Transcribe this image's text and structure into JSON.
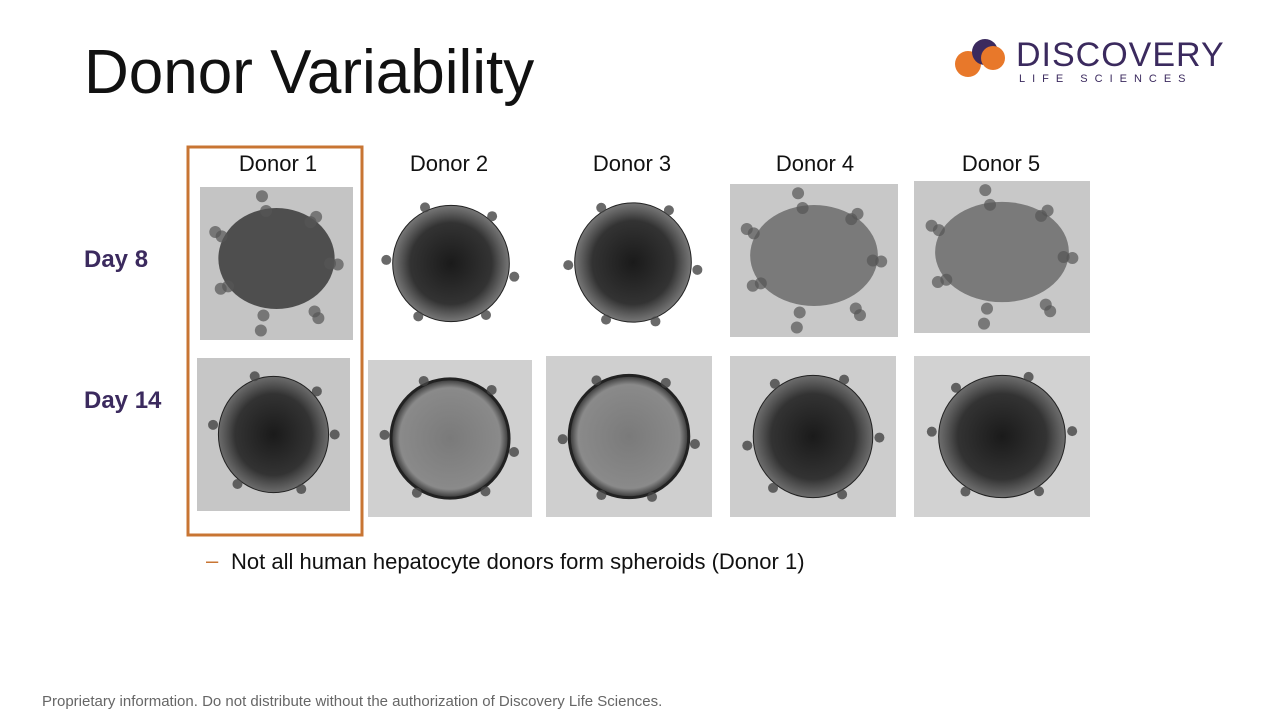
{
  "header": {
    "title": "Donor Variability",
    "logo": {
      "name": "DISCOVERY",
      "tagline": "LIFE SCIENCES"
    }
  },
  "grid": {
    "columns": [
      "Donor 1",
      "Donor 2",
      "Donor 3",
      "Donor 4",
      "Donor 5"
    ],
    "rows": [
      "Day 8",
      "Day 14"
    ]
  },
  "bullets": [
    "Not all human hepatocyte donors form spheroids (Donor 1)"
  ],
  "footer": "Proprietary information.  Do not distribute without the authorization of Discovery Life Sciences."
}
